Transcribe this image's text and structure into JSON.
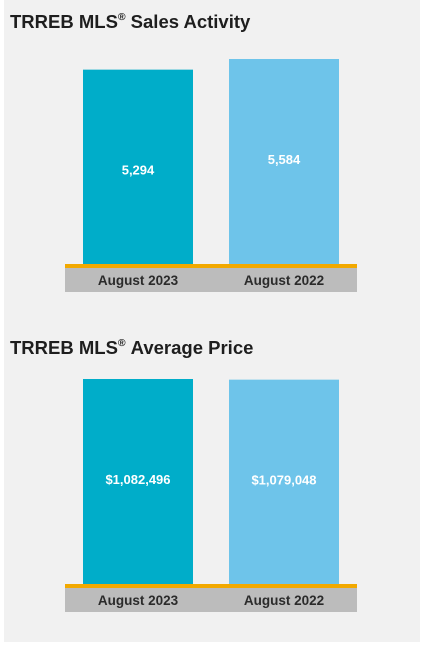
{
  "chart_data": [
    {
      "type": "bar",
      "title_main": "TRREB MLS",
      "title_mark": "®",
      "title_rest": "Sales Activity",
      "categories": [
        "August 2023",
        "August 2022"
      ],
      "values": [
        5294,
        5584
      ],
      "value_labels": [
        "5,294",
        "5,584"
      ],
      "colors": [
        "#00adc9",
        "#6ec4ea"
      ],
      "ylim": [
        0,
        5584
      ],
      "grid": false,
      "legend": "none"
    },
    {
      "type": "bar",
      "title_main": "TRREB MLS",
      "title_mark": "®",
      "title_rest": "Average Price",
      "categories": [
        "August 2023",
        "August 2022"
      ],
      "values": [
        1082496,
        1079048
      ],
      "value_labels": [
        "$1,082,496",
        "$1,079,048"
      ],
      "colors": [
        "#00adc9",
        "#6ec4ea"
      ],
      "ylim": [
        0,
        1082496
      ],
      "grid": false,
      "legend": "none"
    }
  ],
  "colors": {
    "baseline": "#f2a900",
    "label_band": "#bcbcbc",
    "label_text": "#2b2b2b",
    "value_text": "#ffffff"
  }
}
